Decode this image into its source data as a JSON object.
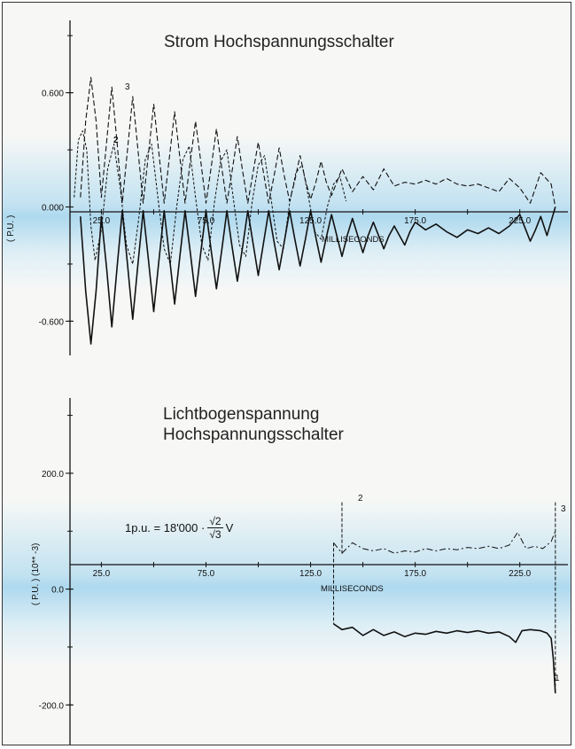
{
  "chart_data": [
    {
      "type": "line",
      "title": "Strom Hochspannungsschalter",
      "ylabel": "( P.U. )",
      "xlabel": "MILLISECONDS",
      "x_tick_labels": [
        "25.0",
        "75.0",
        "125.0",
        "175.0",
        "225.0"
      ],
      "y_tick_labels": [
        "0.600",
        "0.000",
        "-0.600"
      ],
      "x_range": [
        10,
        248
      ],
      "ylim": [
        -0.78,
        0.98
      ],
      "curve_labels": [
        "3",
        "2"
      ],
      "series": [
        {
          "style": "solid",
          "points": [
            [
              15,
              -0.05
            ],
            [
              17.5,
              -0.44
            ],
            [
              20,
              -0.72
            ],
            [
              22.5,
              -0.44
            ],
            [
              25,
              -0.05
            ],
            [
              27.5,
              -0.32
            ],
            [
              30,
              -0.63
            ],
            [
              32.5,
              -0.32
            ],
            [
              35,
              -0.02
            ],
            [
              37.5,
              -0.3
            ],
            [
              40,
              -0.59
            ],
            [
              42.5,
              -0.3
            ],
            [
              45,
              -0.02
            ],
            [
              47.5,
              -0.28
            ],
            [
              50,
              -0.55
            ],
            [
              52.5,
              -0.28
            ],
            [
              55,
              -0.02
            ],
            [
              57.5,
              -0.26
            ],
            [
              60,
              -0.51
            ],
            [
              62.5,
              -0.26
            ],
            [
              65,
              -0.02
            ],
            [
              67.5,
              -0.24
            ],
            [
              70,
              -0.47
            ],
            [
              72.5,
              -0.24
            ],
            [
              75,
              -0.02
            ],
            [
              77.5,
              -0.23
            ],
            [
              80,
              -0.43
            ],
            [
              82.5,
              -0.23
            ],
            [
              85,
              -0.02
            ],
            [
              87.5,
              -0.21
            ],
            [
              90,
              -0.39
            ],
            [
              92.5,
              -0.21
            ],
            [
              95,
              -0.02
            ],
            [
              97.5,
              -0.19
            ],
            [
              100,
              -0.36
            ],
            [
              102.5,
              -0.19
            ],
            [
              105,
              -0.02
            ],
            [
              107.5,
              -0.18
            ],
            [
              110,
              -0.33
            ],
            [
              112.5,
              -0.18
            ],
            [
              115,
              -0.02
            ],
            [
              117.5,
              -0.17
            ],
            [
              120,
              -0.31
            ],
            [
              122.5,
              -0.17
            ],
            [
              125,
              -0.02
            ],
            [
              127.5,
              -0.16
            ],
            [
              130,
              -0.29
            ],
            [
              132.5,
              -0.16
            ],
            [
              135,
              -0.04
            ],
            [
              137.5,
              -0.15
            ],
            [
              140,
              -0.26
            ],
            [
              142.5,
              -0.15
            ],
            [
              145,
              -0.06
            ],
            [
              147.5,
              -0.15
            ],
            [
              150,
              -0.24
            ],
            [
              152.5,
              -0.15
            ],
            [
              155,
              -0.08
            ],
            [
              157.5,
              -0.15
            ],
            [
              160,
              -0.22
            ],
            [
              162.5,
              -0.15
            ],
            [
              165,
              -0.1
            ],
            [
              167.5,
              -0.15
            ],
            [
              170,
              -0.2
            ],
            [
              172.5,
              -0.13
            ],
            [
              175,
              -0.08
            ],
            [
              180,
              -0.12
            ],
            [
              185,
              -0.09
            ],
            [
              190,
              -0.13
            ],
            [
              195,
              -0.16
            ],
            [
              200,
              -0.12
            ],
            [
              205,
              -0.14
            ],
            [
              210,
              -0.11
            ],
            [
              215,
              -0.14
            ],
            [
              220,
              -0.1
            ],
            [
              225,
              -0.04
            ],
            [
              230,
              -0.18
            ],
            [
              232.5,
              -0.12
            ],
            [
              235,
              -0.05
            ],
            [
              238,
              -0.15
            ],
            [
              242,
              0.0
            ]
          ]
        },
        {
          "style": "dash",
          "points": [
            [
              15,
              0.05
            ],
            [
              17.5,
              0.45
            ],
            [
              20,
              0.68
            ],
            [
              22.5,
              0.45
            ],
            [
              25,
              0.05
            ],
            [
              27.5,
              0.34
            ],
            [
              30,
              0.63
            ],
            [
              32.5,
              0.34
            ],
            [
              35,
              0.02
            ],
            [
              37.5,
              0.3
            ],
            [
              40,
              0.58
            ],
            [
              42.5,
              0.3
            ],
            [
              45,
              0.02
            ],
            [
              47.5,
              0.28
            ],
            [
              50,
              0.54
            ],
            [
              52.5,
              0.28
            ],
            [
              55,
              0.02
            ],
            [
              57.5,
              0.26
            ],
            [
              60,
              0.5
            ],
            [
              62.5,
              0.26
            ],
            [
              65,
              0.02
            ],
            [
              67.5,
              0.24
            ],
            [
              70,
              0.45
            ],
            [
              72.5,
              0.24
            ],
            [
              75,
              0.02
            ],
            [
              77.5,
              0.21
            ],
            [
              80,
              0.41
            ],
            [
              82.5,
              0.21
            ],
            [
              85,
              0.02
            ],
            [
              87.5,
              0.19
            ],
            [
              90,
              0.37
            ],
            [
              92.5,
              0.19
            ],
            [
              95,
              0.02
            ],
            [
              97.5,
              0.18
            ],
            [
              100,
              0.34
            ],
            [
              102.5,
              0.18
            ],
            [
              105,
              0.02
            ],
            [
              107.5,
              0.16
            ],
            [
              110,
              0.31
            ],
            [
              112.5,
              0.16
            ],
            [
              115,
              0.03
            ],
            [
              117.5,
              0.14
            ],
            [
              120,
              0.27
            ],
            [
              122.5,
              0.14
            ],
            [
              125,
              0.04
            ],
            [
              127.5,
              0.13
            ],
            [
              130,
              0.24
            ],
            [
              132.5,
              0.13
            ],
            [
              135,
              0.06
            ],
            [
              140,
              0.2
            ],
            [
              145,
              0.08
            ],
            [
              150,
              0.16
            ],
            [
              155,
              0.09
            ],
            [
              160,
              0.2
            ],
            [
              165,
              0.11
            ],
            [
              170,
              0.13
            ],
            [
              175,
              0.12
            ],
            [
              180,
              0.14
            ],
            [
              185,
              0.12
            ],
            [
              190,
              0.15
            ],
            [
              195,
              0.12
            ],
            [
              200,
              0.11
            ],
            [
              205,
              0.12
            ],
            [
              210,
              0.1
            ],
            [
              215,
              0.08
            ],
            [
              220,
              0.15
            ],
            [
              225,
              0.1
            ],
            [
              230,
              0.02
            ],
            [
              235,
              0.18
            ],
            [
              240,
              0.12
            ],
            [
              242,
              0.0
            ]
          ]
        },
        {
          "style": "dot",
          "points": [
            [
              12,
              0.05
            ],
            [
              14,
              0.35
            ],
            [
              16,
              0.4
            ],
            [
              18,
              0.3
            ],
            [
              20,
              -0.1
            ],
            [
              22,
              -0.28
            ],
            [
              25,
              -0.12
            ],
            [
              28,
              0.2
            ],
            [
              31,
              0.33
            ],
            [
              34,
              0.1
            ],
            [
              37,
              -0.2
            ],
            [
              40,
              -0.3
            ],
            [
              43,
              -0.05
            ],
            [
              46,
              0.25
            ],
            [
              49,
              0.33
            ],
            [
              52,
              0.05
            ],
            [
              55,
              -0.22
            ],
            [
              58,
              -0.3
            ],
            [
              61,
              0.0
            ],
            [
              64,
              0.25
            ],
            [
              67,
              0.32
            ],
            [
              70,
              0.05
            ],
            [
              73,
              -0.2
            ],
            [
              76,
              -0.28
            ],
            [
              79,
              0.02
            ],
            [
              82,
              0.24
            ],
            [
              85,
              0.3
            ],
            [
              88,
              0.05
            ],
            [
              91,
              -0.2
            ],
            [
              94,
              -0.26
            ],
            [
              97,
              0.02
            ],
            [
              100,
              0.22
            ],
            [
              103,
              0.27
            ],
            [
              106,
              0.05
            ],
            [
              109,
              -0.18
            ],
            [
              112,
              -0.22
            ],
            [
              115,
              0.02
            ],
            [
              118,
              0.18
            ],
            [
              121,
              0.22
            ],
            [
              124,
              0.05
            ],
            [
              127,
              -0.13
            ],
            [
              130,
              -0.17
            ],
            [
              133,
              0.0
            ],
            [
              136,
              0.12
            ],
            [
              139,
              0.16
            ],
            [
              142,
              0.03
            ]
          ]
        }
      ]
    },
    {
      "type": "line",
      "title_lines": [
        "Lichtbogenspannung",
        "Hochspannungsschalter"
      ],
      "ylabel": "( P.U. ) (10** -3)",
      "xlabel": "MILLISECONDS",
      "x_tick_labels": [
        "25.0",
        "75.0",
        "125.0",
        "175.0",
        "225.0"
      ],
      "y_tick_labels": [
        "200.0",
        "0.0",
        "-200.0"
      ],
      "x_range": [
        10,
        248
      ],
      "ylim": [
        -270,
        330
      ],
      "curve_labels": [
        "2",
        "3",
        "1"
      ],
      "formula": {
        "prefix": "1p.u. = 18'000 ·",
        "numerator": "√2",
        "denominator": "√3",
        "unit": "V"
      },
      "series": [
        {
          "style": "solid",
          "points": [
            [
              136,
              -60
            ],
            [
              140,
              -70
            ],
            [
              145,
              -66
            ],
            [
              150,
              -80
            ],
            [
              155,
              -70
            ],
            [
              160,
              -80
            ],
            [
              165,
              -74
            ],
            [
              170,
              -82
            ],
            [
              175,
              -76
            ],
            [
              180,
              -78
            ],
            [
              185,
              -73
            ],
            [
              190,
              -76
            ],
            [
              195,
              -72
            ],
            [
              200,
              -75
            ],
            [
              205,
              -72
            ],
            [
              210,
              -76
            ],
            [
              215,
              -74
            ],
            [
              220,
              -82
            ],
            [
              223,
              -92
            ],
            [
              226,
              -72
            ],
            [
              230,
              -70
            ],
            [
              235,
              -72
            ],
            [
              238,
              -76
            ],
            [
              240,
              -85
            ],
            [
              241,
              -120
            ],
            [
              242,
              -180
            ]
          ]
        },
        {
          "style": "dashdot",
          "points": [
            [
              136,
              80
            ],
            [
              140,
              62
            ],
            [
              145,
              80
            ],
            [
              150,
              70
            ],
            [
              155,
              66
            ],
            [
              160,
              70
            ],
            [
              165,
              62
            ],
            [
              170,
              66
            ],
            [
              175,
              64
            ],
            [
              180,
              70
            ],
            [
              185,
              66
            ],
            [
              190,
              70
            ],
            [
              195,
              68
            ],
            [
              200,
              72
            ],
            [
              205,
              70
            ],
            [
              210,
              74
            ],
            [
              215,
              70
            ],
            [
              220,
              76
            ],
            [
              224,
              98
            ],
            [
              228,
              70
            ],
            [
              232,
              74
            ],
            [
              236,
              70
            ],
            [
              240,
              82
            ],
            [
              242,
              100
            ]
          ]
        }
      ]
    }
  ]
}
